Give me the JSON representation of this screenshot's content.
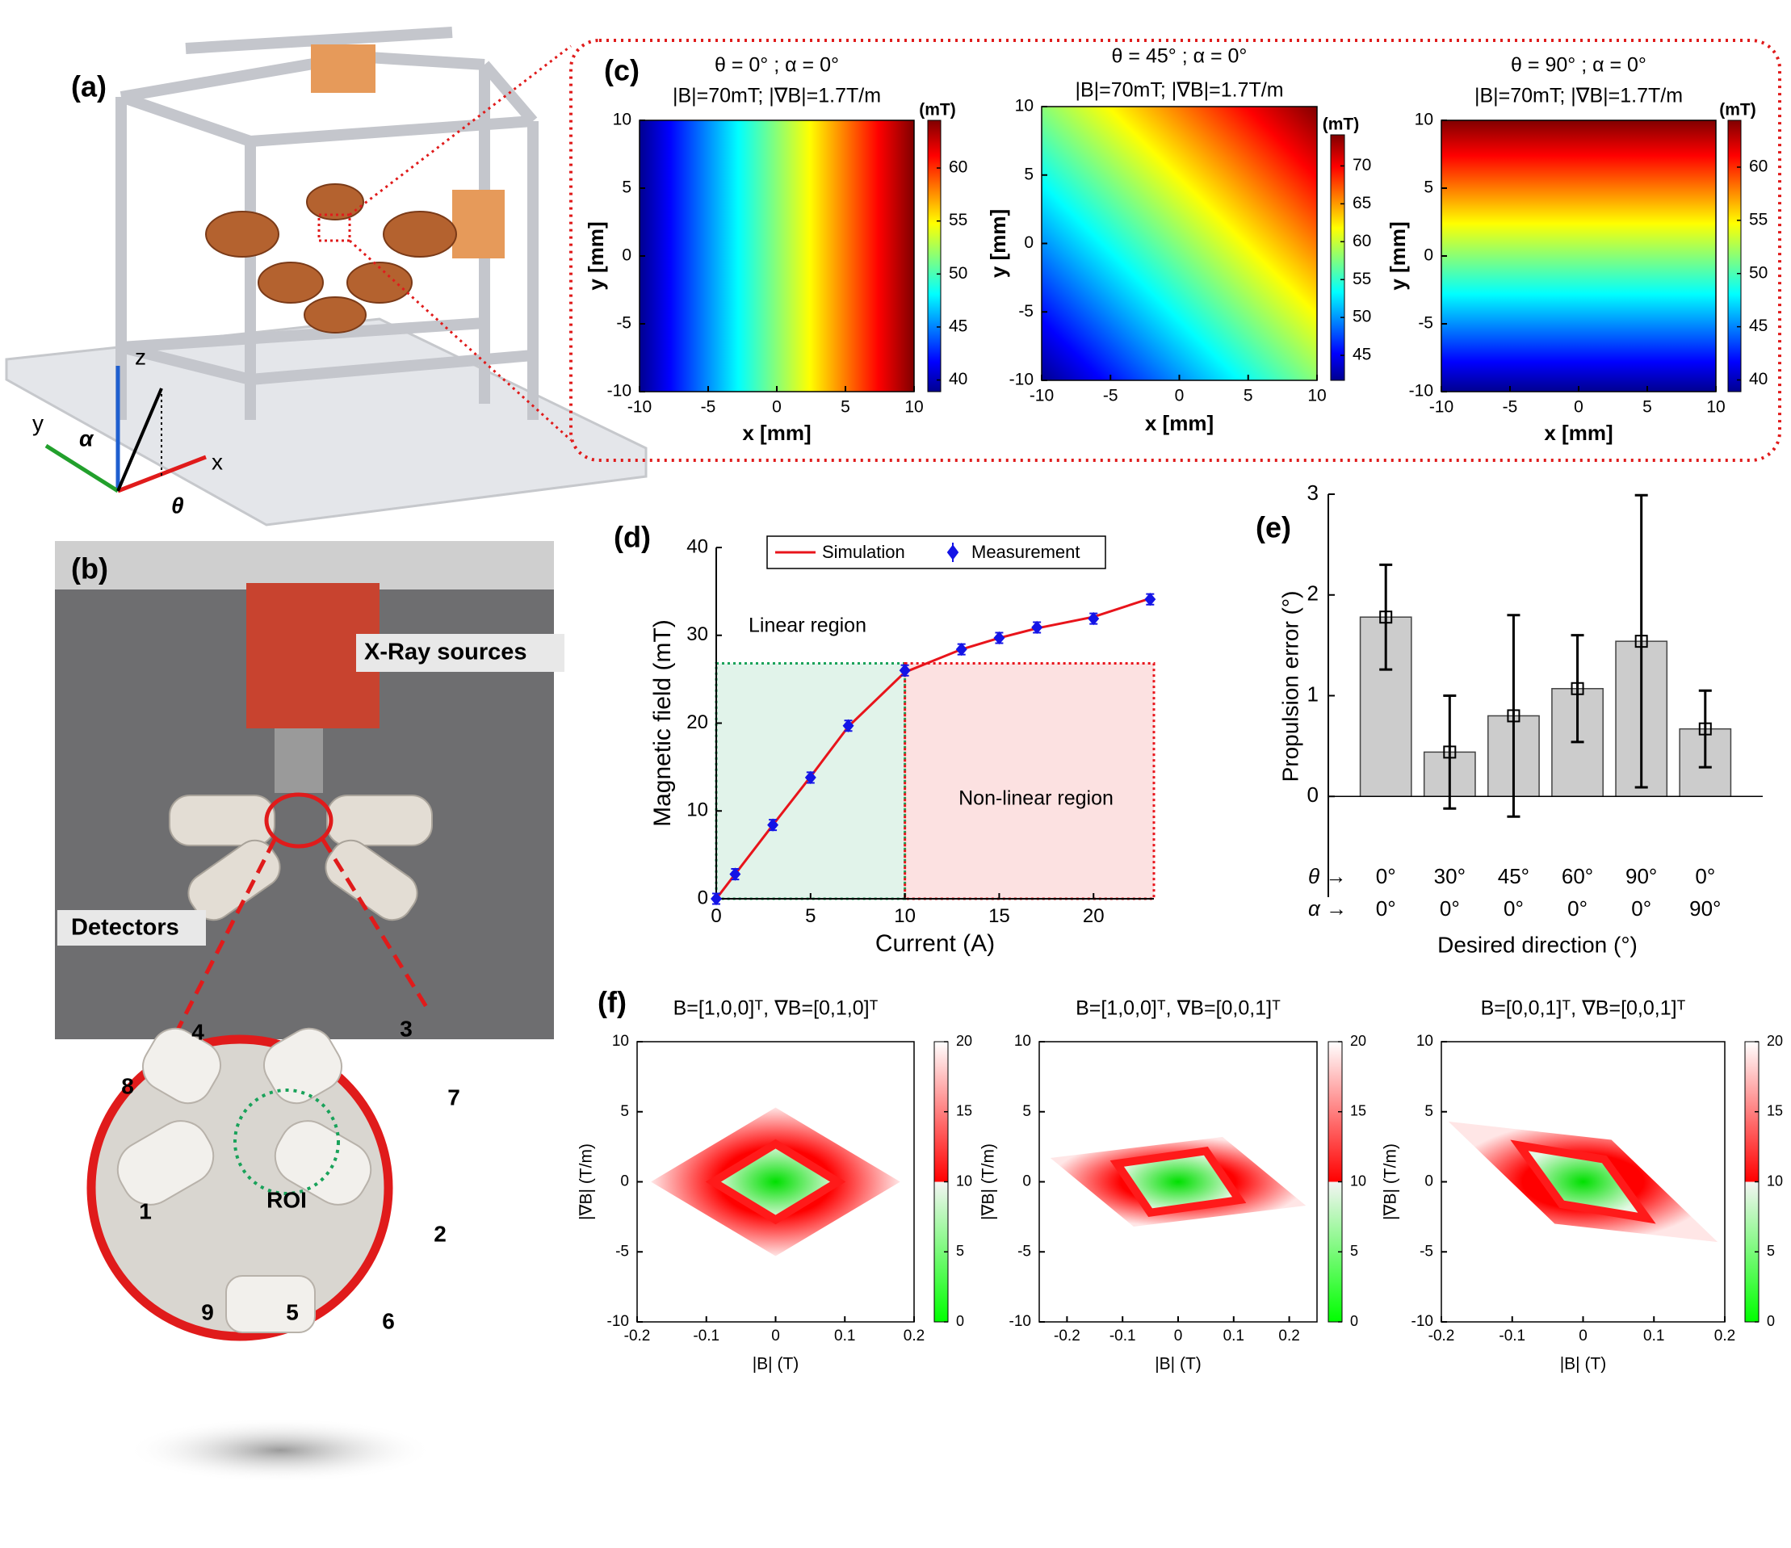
{
  "panel_labels": [
    "(a)",
    "(b)",
    "(c)",
    "(d)",
    "(e)",
    "(f)"
  ],
  "frame_axes": {
    "x": "x",
    "y": "y",
    "z": "z",
    "alpha": "α",
    "theta": "θ"
  },
  "photo_labels": {
    "xray": "X-Ray sources",
    "detectors": "Detectors",
    "roi": "ROI",
    "coils": [
      "1",
      "2",
      "3",
      "4",
      "5",
      "6",
      "7",
      "8",
      "9"
    ]
  },
  "chart_data": [
    {
      "type": "heatmap",
      "title": [
        "θ = 0° ; α = 0°",
        "|B|=70mT; |∇B|=1.7T/m"
      ],
      "xlabel": "x [mm]",
      "ylabel": "y [mm]",
      "xlim": [
        -10,
        10
      ],
      "ylim": [
        -10,
        10
      ],
      "xticks": [
        -10,
        -5,
        0,
        5,
        10
      ],
      "yticks": [
        -10,
        -5,
        0,
        5,
        10
      ],
      "colorbar_label": "(mT)",
      "clim": [
        38.9,
        64.5
      ],
      "cticks": [
        40,
        45,
        50,
        55,
        60
      ],
      "colormap": "jet"
    },
    {
      "type": "heatmap",
      "title": [
        "θ = 45° ; α = 0°",
        "|B|=70mT; |∇B|=1.7T/m"
      ],
      "xlabel": "x [mm]",
      "ylabel": "y [mm]",
      "xlim": [
        -10,
        10
      ],
      "ylim": [
        -10,
        10
      ],
      "xticks": [
        -10,
        -5,
        0,
        5,
        10
      ],
      "yticks": [
        -10,
        -5,
        0,
        5,
        10
      ],
      "colorbar_label": "(mT)",
      "clim": [
        41.7,
        74.1
      ],
      "cticks": [
        45,
        50,
        55,
        60,
        65,
        70
      ],
      "colormap": "jet"
    },
    {
      "type": "heatmap",
      "title": [
        "θ = 90° ; α = 0°",
        "|B|=70mT; |∇B|=1.7T/m"
      ],
      "xlabel": "x [mm]",
      "ylabel": "y [mm]",
      "xlim": [
        -10,
        10
      ],
      "ylim": [
        -10,
        10
      ],
      "xticks": [
        -10,
        -5,
        0,
        5,
        10
      ],
      "yticks": [
        -10,
        -5,
        0,
        5,
        10
      ],
      "colorbar_label": "(mT)",
      "clim": [
        38.9,
        64.4
      ],
      "cticks": [
        40,
        45,
        50,
        55,
        60
      ],
      "colormap": "jet"
    },
    {
      "type": "line",
      "xlabel": "Current (A)",
      "ylabel": "Magnetic field (mT)",
      "xlim": [
        0,
        23.2
      ],
      "ylim": [
        0,
        40
      ],
      "xticks": [
        0,
        5,
        10,
        15,
        20
      ],
      "yticks": [
        0,
        10,
        20,
        30,
        40
      ],
      "x": [
        0,
        1,
        3,
        5,
        7,
        10,
        13,
        15,
        17,
        20,
        23
      ],
      "series": [
        {
          "name": "Simulation",
          "color": "#e8141b",
          "values": [
            0,
            2.8,
            8.4,
            13.9,
            19.6,
            25.8,
            28.4,
            29.7,
            30.8,
            32.1,
            34.2
          ]
        },
        {
          "name": "Measurement",
          "color": "#1414e6",
          "values": [
            0,
            2.8,
            8.4,
            13.8,
            19.7,
            26.0,
            28.4,
            29.7,
            30.9,
            31.9,
            34.1
          ],
          "errors": [
            0.6,
            0.6,
            0.6,
            0.6,
            0.6,
            0.6,
            0.6,
            0.6,
            0.6,
            0.6,
            0.6
          ]
        }
      ],
      "regions": [
        {
          "name": "Linear region",
          "xrange": [
            0,
            10
          ],
          "color": "#19a25a"
        },
        {
          "name": "Non-linear region",
          "xrange": [
            10,
            23.2
          ],
          "color": "#e8141b"
        }
      ],
      "legend": "top"
    },
    {
      "type": "bar",
      "ylabel": "Propulsion error (°)",
      "xlabel": "Desired direction (°)",
      "ylim": [
        -1,
        3
      ],
      "yticks": [
        0,
        1,
        2,
        3
      ],
      "row_label": "θ →",
      "categories": [
        "0°",
        "30°",
        "45°",
        "60°",
        "90°",
        "0°"
      ],
      "row2_label": "α →",
      "categories2": [
        "0°",
        "0°",
        "0°",
        "0°",
        "0°",
        "90°"
      ],
      "values": [
        1.78,
        0.44,
        0.8,
        1.07,
        1.54,
        0.67
      ],
      "errors": [
        0.52,
        0.56,
        1.0,
        0.53,
        1.45,
        0.38
      ],
      "color": "#cccccc"
    },
    {
      "type": "region",
      "title": "B=[1,0,0]ᵀ, ∇B=[0,1,0]ᵀ",
      "xlabel": "|B| (T)",
      "ylabel": "|∇B| (T/m)",
      "xlim": [
        -0.2,
        0.2
      ],
      "ylim": [
        -10,
        10
      ],
      "xticks": [
        -0.2,
        -0.1,
        0,
        0.1,
        0.2
      ],
      "yticks": [
        -10,
        -5,
        0,
        5,
        10
      ],
      "clim": [
        0,
        20
      ],
      "cticks": [
        0,
        5,
        10,
        15,
        20
      ],
      "regions": [
        {
          "x": [
            -0.18,
            0,
            0.18,
            0
          ],
          "y": [
            0,
            5.3,
            0,
            -5.3
          ]
        },
        {
          "x": [
            -0.09,
            0,
            0.09,
            0
          ],
          "y": [
            0,
            2.7,
            0,
            -2.7
          ]
        }
      ]
    },
    {
      "type": "region",
      "title": "B=[1,0,0]ᵀ, ∇B=[0,0,1]ᵀ",
      "xlabel": "|B| (T)",
      "ylabel": "|∇B| (T/m)",
      "xlim": [
        -0.25,
        0.25
      ],
      "ylim": [
        -10,
        10
      ],
      "xticks": [
        -0.2,
        -0.1,
        0,
        0.1,
        0.2
      ],
      "yticks": [
        -10,
        -5,
        0,
        5,
        10
      ],
      "clim": [
        0,
        20
      ],
      "cticks": [
        0,
        5,
        10,
        15,
        20
      ],
      "regions": [
        {
          "x": [
            -0.23,
            0.08,
            0.23,
            -0.08
          ],
          "y": [
            1.7,
            3.2,
            -1.7,
            -3.2
          ]
        },
        {
          "x": [
            -0.11,
            0.05,
            0.11,
            -0.05
          ],
          "y": [
            1.3,
            2.2,
            -1.3,
            -2.2
          ]
        }
      ]
    },
    {
      "type": "region",
      "title": "B=[0,0,1]ᵀ, ∇B=[0,0,1]ᵀ",
      "xlabel": "|B| (T)",
      "ylabel": "|∇B| (T/m)",
      "xlim": [
        -0.2,
        0.2
      ],
      "ylim": [
        -10,
        10
      ],
      "xticks": [
        -0.2,
        -0.1,
        0,
        0.1,
        0.2
      ],
      "yticks": [
        -10,
        -5,
        0,
        5,
        10
      ],
      "clim": [
        0,
        20
      ],
      "cticks": [
        0,
        5,
        10,
        15,
        20
      ],
      "regions": [
        {
          "x": [
            -0.19,
            0.04,
            0.19,
            -0.04
          ],
          "y": [
            4.3,
            3.0,
            -4.3,
            -3.0
          ]
        },
        {
          "x": [
            -0.09,
            0.03,
            0.09,
            -0.03
          ],
          "y": [
            2.6,
            1.6,
            -2.6,
            -1.6
          ]
        }
      ]
    }
  ]
}
